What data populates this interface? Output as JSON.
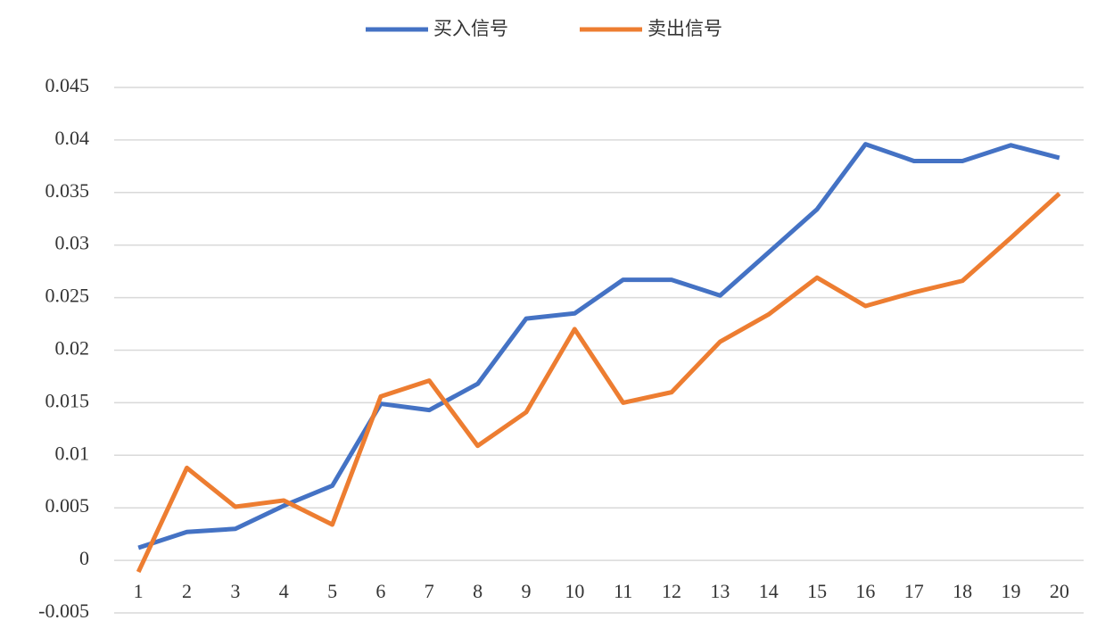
{
  "chart_data": {
    "type": "line",
    "categories": [
      "1",
      "2",
      "3",
      "4",
      "5",
      "6",
      "7",
      "8",
      "9",
      "10",
      "11",
      "12",
      "13",
      "14",
      "15",
      "16",
      "17",
      "18",
      "19",
      "20"
    ],
    "series": [
      {
        "name": "买入信号",
        "color": "#4472c4",
        "values": [
          0.0012,
          0.0027,
          0.003,
          0.0052,
          0.0071,
          0.0149,
          0.0143,
          0.0168,
          0.023,
          0.0235,
          0.0267,
          0.0267,
          0.0252,
          0.0293,
          0.0334,
          0.0396,
          0.038,
          0.038,
          0.0395,
          0.0383
        ]
      },
      {
        "name": "卖出信号",
        "color": "#ed7d31",
        "values": [
          -0.0011,
          0.0088,
          0.0051,
          0.0057,
          0.0034,
          0.0156,
          0.0171,
          0.0109,
          0.0141,
          0.022,
          0.015,
          0.016,
          0.0208,
          0.0234,
          0.0269,
          0.0242,
          0.0255,
          0.0266,
          0.0307,
          0.0349
        ]
      }
    ],
    "ylim": [
      -0.005,
      0.045
    ],
    "yticks": [
      -0.005,
      0,
      0.005,
      0.01,
      0.015,
      0.02,
      0.025,
      0.03,
      0.035,
      0.04,
      0.045
    ],
    "grid": true,
    "legend": "top"
  }
}
